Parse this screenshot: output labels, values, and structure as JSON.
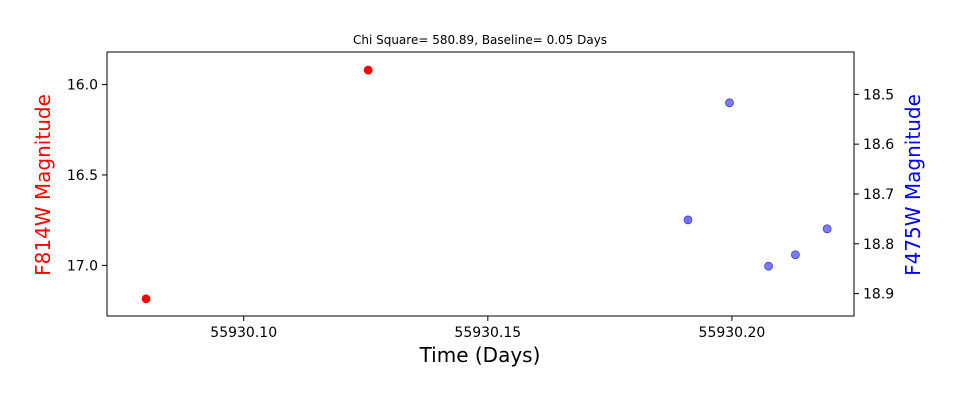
{
  "chart_data": {
    "type": "scatter",
    "title": "Chi Square= 580.89, Baseline= 0.05 Days",
    "xlabel": "Time (Days)",
    "ylabel_left": "F814W Magnitude",
    "ylabel_right": "F475W Magnitude",
    "xlim": [
      55930.072,
      55930.225
    ],
    "ylim_left": [
      15.82,
      17.28
    ],
    "ylim_right": [
      18.415,
      18.945
    ],
    "y_inverted": true,
    "x_ticks": [
      55930.1,
      55930.15,
      55930.2
    ],
    "x_tick_labels": [
      "55930.10",
      "55930.15",
      "55930.20"
    ],
    "y_left_ticks": [
      16.0,
      16.5,
      17.0
    ],
    "y_left_tick_labels": [
      "16.0",
      "16.5",
      "17.0"
    ],
    "y_right_ticks": [
      18.5,
      18.6,
      18.7,
      18.8,
      18.9
    ],
    "y_right_tick_labels": [
      "18.5",
      "18.6",
      "18.7",
      "18.8",
      "18.9"
    ],
    "series": [
      {
        "axis": "left",
        "color": "#ff0000",
        "points": [
          {
            "x": 55930.08,
            "y": 17.185
          },
          {
            "x": 55930.1255,
            "y": 15.92
          }
        ]
      },
      {
        "axis": "right",
        "color": "#6464f0",
        "points": [
          {
            "x": 55930.191,
            "y": 18.752,
            "yerr": 0.008
          },
          {
            "x": 55930.1995,
            "y": 18.517
          },
          {
            "x": 55930.2075,
            "y": 18.845
          },
          {
            "x": 55930.213,
            "y": 18.822
          },
          {
            "x": 55930.2195,
            "y": 18.77
          }
        ]
      }
    ],
    "ylabel_left_color": "#ff0000",
    "ylabel_right_color": "#0000ff",
    "grid": false,
    "legend": "none"
  }
}
